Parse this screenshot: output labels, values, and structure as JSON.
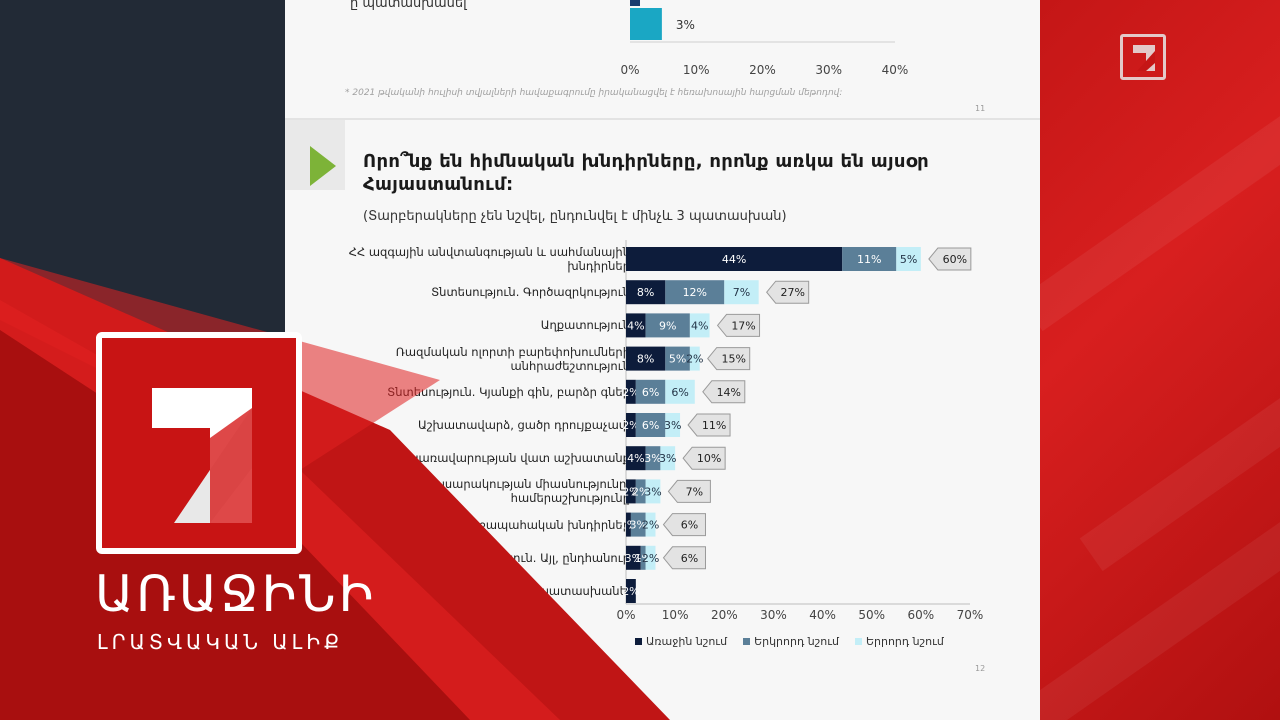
{
  "slide": {
    "top_label": "ը պատասխանել",
    "footnote": "* 2021 թվականի հուլիսի տվյալների հավաքագրումը իրականացվել է հեռախոսային հարցման մեթոդով:",
    "page_prev": "11",
    "page_current": "12",
    "heading_line1": "Որո՞նք են հիմնական խնդիրները, որոնք առկա են այսօր",
    "heading_line2": "Հայաստանում:",
    "subheading": "(Տարբերակները չեն նշվել, ընդունվել է մինչև 3 պատասխան)"
  },
  "brand": {
    "title": "ԱՌԱՋԻՆԻ",
    "subtitle": "ԼՐԱՏՎԱԿԱՆ ԱԼԻՔ"
  },
  "colors": {
    "first": "#0d1c3b",
    "second": "#5b7f98",
    "third": "#c3eef7",
    "top_bar": "#1aa7c4",
    "total_tag": "#e3e3e3",
    "accent_red": "#d01818",
    "play_green": "#7db338"
  },
  "chart_data": [
    {
      "type": "bar",
      "orientation": "horizontal",
      "partial": true,
      "values": [
        3
      ],
      "value_labels": [
        "3%"
      ],
      "xlim": [
        0,
        40
      ],
      "x_ticks": [
        "0%",
        "10%",
        "20%",
        "30%",
        "40%"
      ]
    },
    {
      "type": "bar",
      "orientation": "horizontal",
      "stacked": true,
      "categories": [
        [
          "ՀՀ ազգային անվտանգության և սահմանային",
          "խնդիրներ"
        ],
        [
          "Տնտեսություն. Գործազրկություն"
        ],
        [
          "Աղքատություն"
        ],
        [
          "Ռազմական ոլորտի բարեփոխումների",
          "անհրաժեշտություն"
        ],
        [
          "Տնտեսություն. Կյանքի գին, բարձր գներ"
        ],
        [
          "Աշխատավարձ, ցածր դրույքաչափ"
        ],
        [
          "Կառավարության վատ աշխատանք"
        ],
        [
          "Չկա հասարակության միասնությունը,",
          "համերաշխությունը"
        ],
        [
          "Առողջապահական խնդիրներ"
        ],
        [
          "Տնտեսություն. Այլ, ընդհանուր"
        ],
        [
          "ը պատասխանել"
        ]
      ],
      "series": [
        {
          "name": "Առաջին նշում",
          "values": [
            44,
            8,
            4,
            8,
            2,
            2,
            4,
            2,
            1,
            3,
            2
          ],
          "labels": [
            "44%",
            "8%",
            "4%",
            "8%",
            "2%",
            "2%",
            "4%",
            "2%",
            "1%",
            "3%",
            "2%"
          ]
        },
        {
          "name": "Երկրորդ նշում",
          "values": [
            11,
            12,
            9,
            5,
            6,
            6,
            3,
            2,
            3,
            1,
            0
          ],
          "labels": [
            "11%",
            "12%",
            "9%",
            "5%",
            "6%",
            "6%",
            "3%",
            "2%",
            "3%",
            "1%",
            ""
          ]
        },
        {
          "name": "Երրորդ նշում",
          "values": [
            5,
            7,
            4,
            2,
            6,
            3,
            3,
            3,
            2,
            2,
            0
          ],
          "labels": [
            "5%",
            "7%",
            "4%",
            "2%",
            "6%",
            "3%",
            "3%",
            "3%",
            "2%",
            "2%",
            ""
          ]
        }
      ],
      "totals": [
        "60%",
        "27%",
        "17%",
        "15%",
        "14%",
        "11%",
        "10%",
        "7%",
        "6%",
        "6%",
        ""
      ],
      "xlim": [
        0,
        70
      ],
      "x_ticks": [
        "0%",
        "10%",
        "20%",
        "30%",
        "40%",
        "50%",
        "60%",
        "70%"
      ],
      "legend": "bottom"
    }
  ]
}
